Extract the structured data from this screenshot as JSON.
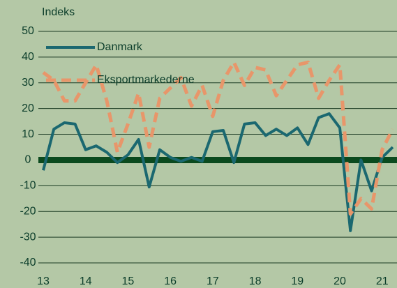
{
  "chart_data": {
    "type": "line",
    "y_label": "Indeks",
    "x": [
      13,
      13.25,
      13.5,
      13.75,
      14,
      14.25,
      14.5,
      14.75,
      15,
      15.25,
      15.5,
      15.75,
      16,
      16.25,
      16.5,
      16.75,
      17,
      17.25,
      17.5,
      17.75,
      18,
      18.25,
      18.5,
      18.75,
      19,
      19.25,
      19.5,
      19.75,
      20,
      20.25,
      20.5,
      20.75,
      21,
      21.25
    ],
    "series": [
      {
        "name": "Danmark",
        "color": "#1b6870",
        "dashed": false,
        "values": [
          -4,
          12,
          14.5,
          14,
          4,
          5.5,
          3,
          -1,
          2,
          8,
          -10.5,
          4,
          1,
          -0.5,
          1,
          -0.5,
          11,
          11.5,
          -1,
          14,
          14.5,
          9.5,
          12,
          9.5,
          12.5,
          6,
          16.5,
          18,
          12.5,
          -27.5,
          0,
          -12,
          1,
          5
        ]
      },
      {
        "name": "Eksportmarkederne",
        "color": "#e8966a",
        "dashed": true,
        "values": [
          34,
          31,
          23,
          23,
          30,
          37,
          23,
          3,
          14,
          26,
          5,
          24,
          28,
          32,
          21,
          29,
          17,
          31,
          38,
          29,
          36,
          35,
          25,
          31,
          37,
          38,
          24,
          31,
          37,
          -21,
          -15,
          -19,
          4,
          12
        ]
      }
    ],
    "xlim": [
      13,
      21.35
    ],
    "xticks": [
      13,
      14,
      15,
      16,
      17,
      18,
      19,
      20,
      21
    ],
    "ylim": [
      -40,
      50
    ],
    "yticks": [
      -40,
      -30,
      -20,
      -10,
      0,
      10,
      20,
      30,
      40,
      50
    ],
    "grid": true,
    "legend": "upper left"
  }
}
